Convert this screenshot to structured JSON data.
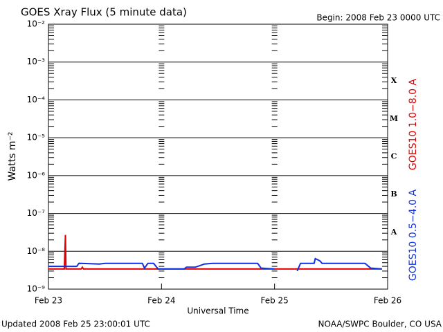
{
  "chart_data": {
    "type": "line",
    "title": "GOES Xray Flux (5 minute data)",
    "subtitle": "Begin:  2008 Feb 23 0000 UTC",
    "x_label": "Universal Time",
    "y_label": "Watts m⁻²",
    "footer_left": "Updated 2008 Feb 25 23:00:01 UTC",
    "footer_right": "NOAA/SWPC Boulder, CO USA",
    "log_scale": true,
    "grid": true,
    "minor_ticks": true,
    "xlim": [
      0,
      3
    ],
    "xticks": [
      {
        "value": 0,
        "label": "Feb 23"
      },
      {
        "value": 1,
        "label": "Feb 24"
      },
      {
        "value": 2,
        "label": "Feb 25"
      },
      {
        "value": 3,
        "label": "Feb 26"
      }
    ],
    "ylim": [
      1e-09,
      0.01
    ],
    "yticks": [
      {
        "value": 0.01,
        "label": "10⁻²"
      },
      {
        "value": 0.001,
        "label": "10⁻³"
      },
      {
        "value": 0.0001,
        "label": "10⁻⁴"
      },
      {
        "value": 1e-05,
        "label": "10⁻⁵"
      },
      {
        "value": 1e-06,
        "label": "10⁻⁶"
      },
      {
        "value": 1e-07,
        "label": "10⁻⁷"
      },
      {
        "value": 1e-08,
        "label": "10⁻⁸"
      },
      {
        "value": 1e-09,
        "label": "10⁻⁹"
      }
    ],
    "flare_classes": [
      "X",
      "M",
      "C",
      "B",
      "A"
    ],
    "series": [
      {
        "name": "GOES10 1.0−8.0 A",
        "color": "#e00000",
        "x": [
          0,
          0.14,
          0.15,
          0.155,
          0.29,
          0.3,
          0.31,
          2.95
        ],
        "values": [
          3.4e-09,
          3.4e-09,
          2.7e-08,
          3.4e-09,
          3.4e-09,
          3.8e-09,
          3.4e-09,
          3.4e-09
        ]
      },
      {
        "name": "GOES10 0.5−4.0 A",
        "color": "#1030e0",
        "x": [
          0,
          0.25,
          0.27,
          0.45,
          0.5,
          0.83,
          0.85,
          0.88,
          0.93,
          0.97,
          1.2,
          1.22,
          1.3,
          1.38,
          1.45,
          1.85,
          1.88,
          2.0,
          2.1,
          2.2,
          2.23,
          2.35,
          2.36,
          2.4,
          2.42,
          2.8,
          2.85,
          2.95
        ],
        "values": [
          4e-09,
          4e-09,
          4.8e-09,
          4.6e-09,
          4.8e-09,
          4.8e-09,
          3.6e-09,
          4.8e-09,
          4.8e-09,
          3.4e-09,
          3.4e-09,
          3.8e-09,
          3.8e-09,
          4.6e-09,
          4.8e-09,
          4.8e-09,
          3.6e-09,
          3.4e-09,
          null,
          3e-09,
          4.8e-09,
          4.8e-09,
          6.4e-09,
          5.6e-09,
          4.8e-09,
          4.8e-09,
          3.6e-09,
          3.4e-09
        ]
      }
    ]
  }
}
